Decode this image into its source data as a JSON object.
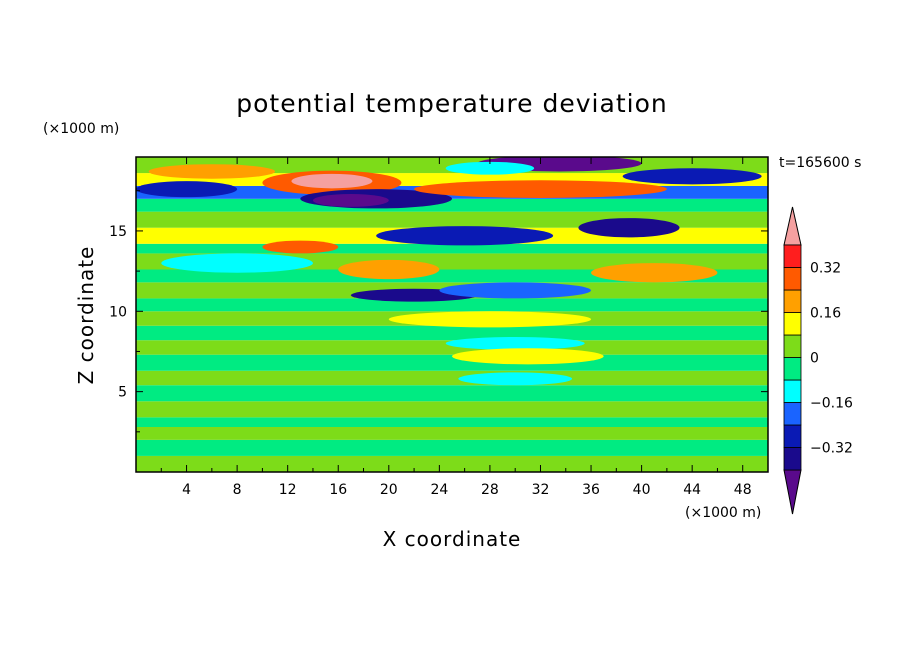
{
  "chart_data": {
    "type": "heatmap",
    "title": "potential temperature deviation",
    "xlabel": "X coordinate",
    "ylabel": "Z coordinate",
    "x_unit": "(×1000 m)",
    "y_unit": "(×1000 m)",
    "time_label": "t=165600 s",
    "xlim": [
      0,
      50
    ],
    "ylim": [
      0,
      19.6
    ],
    "x_ticks": [
      4,
      8,
      12,
      16,
      20,
      24,
      28,
      32,
      36,
      40,
      44,
      48
    ],
    "x_tick_labels": [
      "4",
      "8",
      "12",
      "16",
      "20",
      "24",
      "28",
      "32",
      "36",
      "40",
      "44",
      "48"
    ],
    "y_ticks": [
      5,
      10,
      15
    ],
    "y_tick_labels": [
      "5",
      "10",
      "15"
    ],
    "colorbar": {
      "levels": [
        -0.4,
        -0.32,
        -0.24,
        -0.16,
        -0.08,
        0,
        0.08,
        0.16,
        0.24,
        0.32,
        0.4
      ],
      "tick_values": [
        0.32,
        0.16,
        0,
        -0.16,
        -0.32
      ],
      "tick_labels": [
        "0.32",
        "0.16",
        "0",
        "−0.16",
        "−0.32"
      ],
      "colors": [
        "#5a0a8c",
        "#1a0a8c",
        "#0a1ab4",
        "#1a64ff",
        "#00ffff",
        "#00eb82",
        "#7ddc19",
        "#ffff00",
        "#ffa000",
        "#ff5a00",
        "#ff1e1e",
        "#f5a0a0"
      ]
    },
    "bands": [
      {
        "z": [
          0,
          1
        ],
        "level": 6
      },
      {
        "z": [
          1,
          2
        ],
        "level": 5
      },
      {
        "z": [
          2,
          2.8
        ],
        "level": 6
      },
      {
        "z": [
          2.8,
          3.4
        ],
        "level": 5
      },
      {
        "z": [
          3.4,
          4.4
        ],
        "level": 6
      },
      {
        "z": [
          4.4,
          5.4
        ],
        "level": 5
      },
      {
        "z": [
          5.4,
          6.3
        ],
        "level": 6
      },
      {
        "z": [
          6.3,
          7.3
        ],
        "level": 5
      },
      {
        "z": [
          7.3,
          8.2
        ],
        "level": 6
      },
      {
        "z": [
          8.2,
          9.1
        ],
        "level": 5
      },
      {
        "z": [
          9.1,
          10
        ],
        "level": 6
      },
      {
        "z": [
          10,
          10.8
        ],
        "level": 5
      },
      {
        "z": [
          10.8,
          11.8
        ],
        "level": 6
      },
      {
        "z": [
          11.8,
          12.6
        ],
        "level": 5
      },
      {
        "z": [
          12.6,
          13.6
        ],
        "level": 6
      },
      {
        "z": [
          13.6,
          14.2
        ],
        "level": 5
      },
      {
        "z": [
          14.2,
          15.2
        ],
        "level": 7
      },
      {
        "z": [
          15.2,
          16.2
        ],
        "level": 6
      },
      {
        "z": [
          16.2,
          17
        ],
        "level": 5
      },
      {
        "z": [
          17,
          17.8
        ],
        "level": 3
      },
      {
        "z": [
          17.8,
          18.6
        ],
        "level": 7
      },
      {
        "z": [
          18.6,
          19.6
        ],
        "level": 6
      }
    ],
    "features": [
      {
        "cx": 15.5,
        "cz": 18.0,
        "rx": 5.5,
        "rz": 0.75,
        "level": 9
      },
      {
        "cx": 15.5,
        "cz": 18.1,
        "rx": 3.2,
        "rz": 0.45,
        "level": 11
      },
      {
        "cx": 19.0,
        "cz": 17.0,
        "rx": 6.0,
        "rz": 0.6,
        "level": 1
      },
      {
        "cx": 17.0,
        "cz": 16.9,
        "rx": 3.0,
        "rz": 0.4,
        "level": 0
      },
      {
        "cx": 6.0,
        "cz": 18.7,
        "rx": 5.0,
        "rz": 0.45,
        "level": 8
      },
      {
        "cx": 4.0,
        "cz": 17.6,
        "rx": 4.0,
        "rz": 0.5,
        "level": 2
      },
      {
        "cx": 33.5,
        "cz": 19.2,
        "rx": 6.5,
        "rz": 0.5,
        "level": 0
      },
      {
        "cx": 32.0,
        "cz": 17.6,
        "rx": 10.0,
        "rz": 0.55,
        "level": 9
      },
      {
        "cx": 44.0,
        "cz": 18.4,
        "rx": 5.5,
        "rz": 0.5,
        "level": 2
      },
      {
        "cx": 28.0,
        "cz": 18.9,
        "rx": 3.5,
        "rz": 0.4,
        "level": 4
      },
      {
        "cx": 26.0,
        "cz": 14.7,
        "rx": 7.0,
        "rz": 0.6,
        "level": 2
      },
      {
        "cx": 39.0,
        "cz": 15.2,
        "rx": 4.0,
        "rz": 0.6,
        "level": 1
      },
      {
        "cx": 13.0,
        "cz": 14.0,
        "rx": 3.0,
        "rz": 0.4,
        "level": 9
      },
      {
        "cx": 20.0,
        "cz": 12.6,
        "rx": 4.0,
        "rz": 0.6,
        "level": 8
      },
      {
        "cx": 41.0,
        "cz": 12.4,
        "rx": 5.0,
        "rz": 0.6,
        "level": 8
      },
      {
        "cx": 8.0,
        "cz": 13.0,
        "rx": 6.0,
        "rz": 0.6,
        "level": 4
      },
      {
        "cx": 22.0,
        "cz": 11.0,
        "rx": 5.0,
        "rz": 0.4,
        "level": 1
      },
      {
        "cx": 30.0,
        "cz": 11.3,
        "rx": 6.0,
        "rz": 0.5,
        "level": 3
      },
      {
        "cx": 30.0,
        "cz": 8.0,
        "rx": 5.5,
        "rz": 0.4,
        "level": 4
      },
      {
        "cx": 31.0,
        "cz": 7.2,
        "rx": 6.0,
        "rz": 0.5,
        "level": 7
      },
      {
        "cx": 30.0,
        "cz": 5.8,
        "rx": 4.5,
        "rz": 0.4,
        "level": 4
      },
      {
        "cx": 28.0,
        "cz": 9.5,
        "rx": 8.0,
        "rz": 0.5,
        "level": 7
      }
    ]
  }
}
